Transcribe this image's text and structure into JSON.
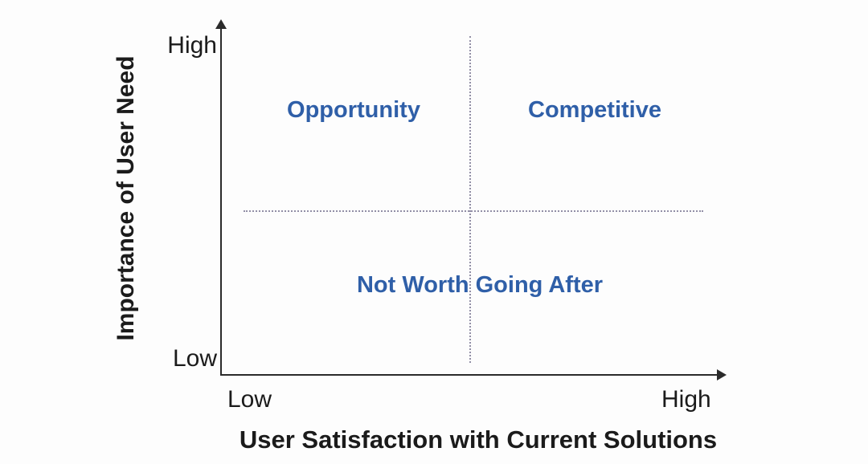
{
  "diagram": {
    "type": "quadrant-matrix",
    "y_axis": {
      "title": "Importance of User Need",
      "top_label": "High",
      "bottom_label": "Low"
    },
    "x_axis": {
      "title": "User Satisfaction with Current Solutions",
      "left_label": "Low",
      "right_label": "High"
    },
    "quadrants": {
      "top_left": "Opportunity",
      "top_right": "Competitive",
      "bottom": "Not Worth Going After"
    }
  },
  "colors": {
    "quadrant_label": "#2f5fa8",
    "axis": "#2b2b2b",
    "divider": "#928fa6",
    "background": "#fdfdfd",
    "text": "#1b1b1b"
  }
}
